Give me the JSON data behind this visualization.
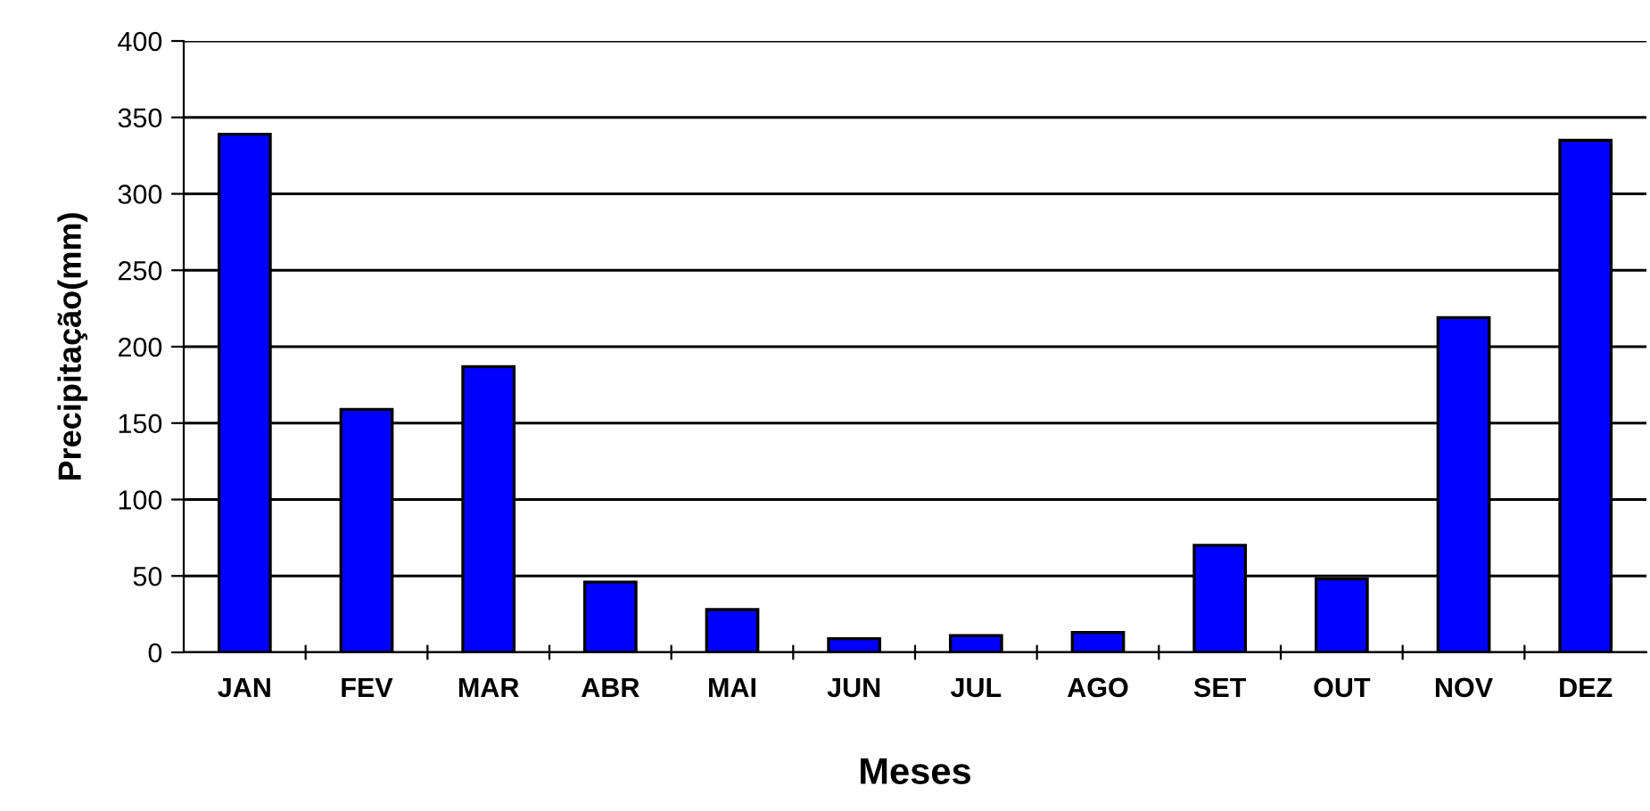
{
  "chart_data": {
    "type": "bar",
    "xlabel": "Meses",
    "ylabel": "Precipitação(mm)",
    "categories": [
      "JAN",
      "FEV",
      "MAR",
      "ABR",
      "MAI",
      "JUN",
      "JUL",
      "AGO",
      "SET",
      "OUT",
      "NOV",
      "DEZ"
    ],
    "values": [
      339,
      159,
      187,
      46,
      28,
      9,
      11,
      13,
      70,
      48,
      219,
      335
    ],
    "color": "#0000ff",
    "ylim": [
      0,
      400
    ],
    "yticks": [
      0,
      50,
      100,
      150,
      200,
      250,
      300,
      350,
      400
    ],
    "grid": "y",
    "legend": false
  }
}
